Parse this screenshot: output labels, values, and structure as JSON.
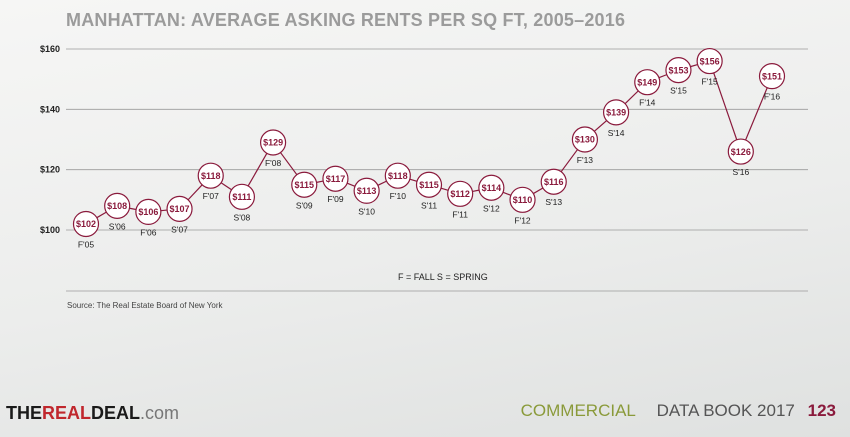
{
  "chart_data": {
    "type": "line",
    "title": "MANHATTAN: AVERAGE ASKING RENTS PER SQ FT, 2005–2016",
    "ylim": [
      100,
      160
    ],
    "yticks": [
      "$100",
      "$120",
      "$140",
      "$160"
    ],
    "grid": true,
    "categories": [
      "F'05",
      "S'06",
      "F'06",
      "S'07",
      "F'07",
      "S'08",
      "F'08",
      "S'09",
      "F'09",
      "S'10",
      "F'10",
      "S'11",
      "F'11",
      "S'12",
      "F'12",
      "S'13",
      "F'13",
      "S'14",
      "F'14",
      "S'15",
      "F'15",
      "S'16",
      "F'16"
    ],
    "values": [
      102,
      108,
      106,
      107,
      118,
      111,
      129,
      115,
      117,
      113,
      118,
      115,
      112,
      114,
      110,
      116,
      130,
      139,
      149,
      153,
      156,
      126,
      151
    ],
    "point_labels": [
      "$102",
      "$108",
      "$106",
      "$107",
      "$118",
      "$111",
      "$129",
      "$115",
      "$117",
      "$113",
      "$118",
      "$115",
      "$112",
      "$114",
      "$110",
      "$116",
      "$130",
      "$139",
      "$149",
      "$153",
      "$156",
      "$126",
      "$151"
    ],
    "legend_note": "F = FALL    S = SPRING",
    "source": "Source: The Real Estate Board of New York",
    "colors": {
      "marker": "#8a1a3c",
      "line": "#8a1a3c",
      "grid": "#9a9a9a"
    }
  },
  "footer": {
    "logo_the": "THE",
    "logo_real": "REAL",
    "logo_deal": "DEAL",
    "logo_domain": ".com",
    "section": "COMMERCIAL",
    "book": "DATA BOOK 2017",
    "page_number": "123"
  }
}
